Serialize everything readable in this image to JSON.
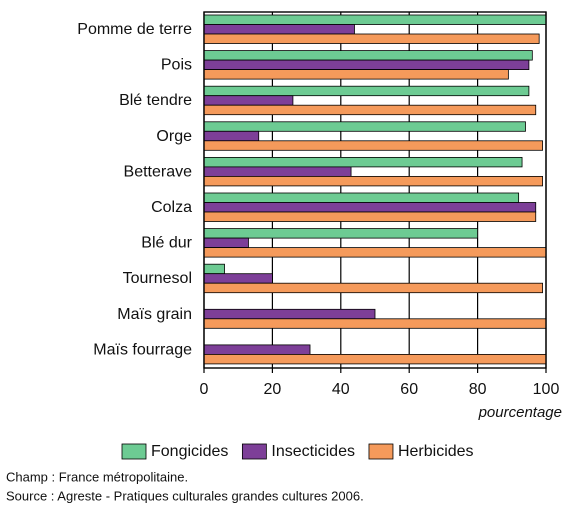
{
  "chart_data": {
    "type": "barh",
    "categories": [
      "Pomme de terre",
      "Pois",
      "Blé tendre",
      "Orge",
      "Betterave",
      "Colza",
      "Blé dur",
      "Tournesol",
      "Maïs grain",
      "Maïs fourrage"
    ],
    "series": [
      {
        "name": "Fongicides",
        "color": "#6dcb93",
        "values": [
          100,
          96,
          95,
          94,
          93,
          92,
          80,
          6,
          0,
          0
        ]
      },
      {
        "name": "Insecticides",
        "color": "#7d3f98",
        "values": [
          44,
          95,
          26,
          16,
          43,
          97,
          13,
          20,
          50,
          31
        ]
      },
      {
        "name": "Herbicides",
        "color": "#f59a5b",
        "values": [
          98,
          89,
          97,
          99,
          99,
          97,
          100,
          99,
          100,
          100
        ]
      }
    ],
    "xlim": [
      0,
      100
    ],
    "xticks": [
      0,
      20,
      40,
      60,
      80,
      100
    ],
    "xlabel": "pourcentage",
    "grid": true,
    "notes": [
      "Champ : France métropolitaine.",
      "Source : Agreste - Pratiques culturales grandes cultures 2006."
    ]
  }
}
